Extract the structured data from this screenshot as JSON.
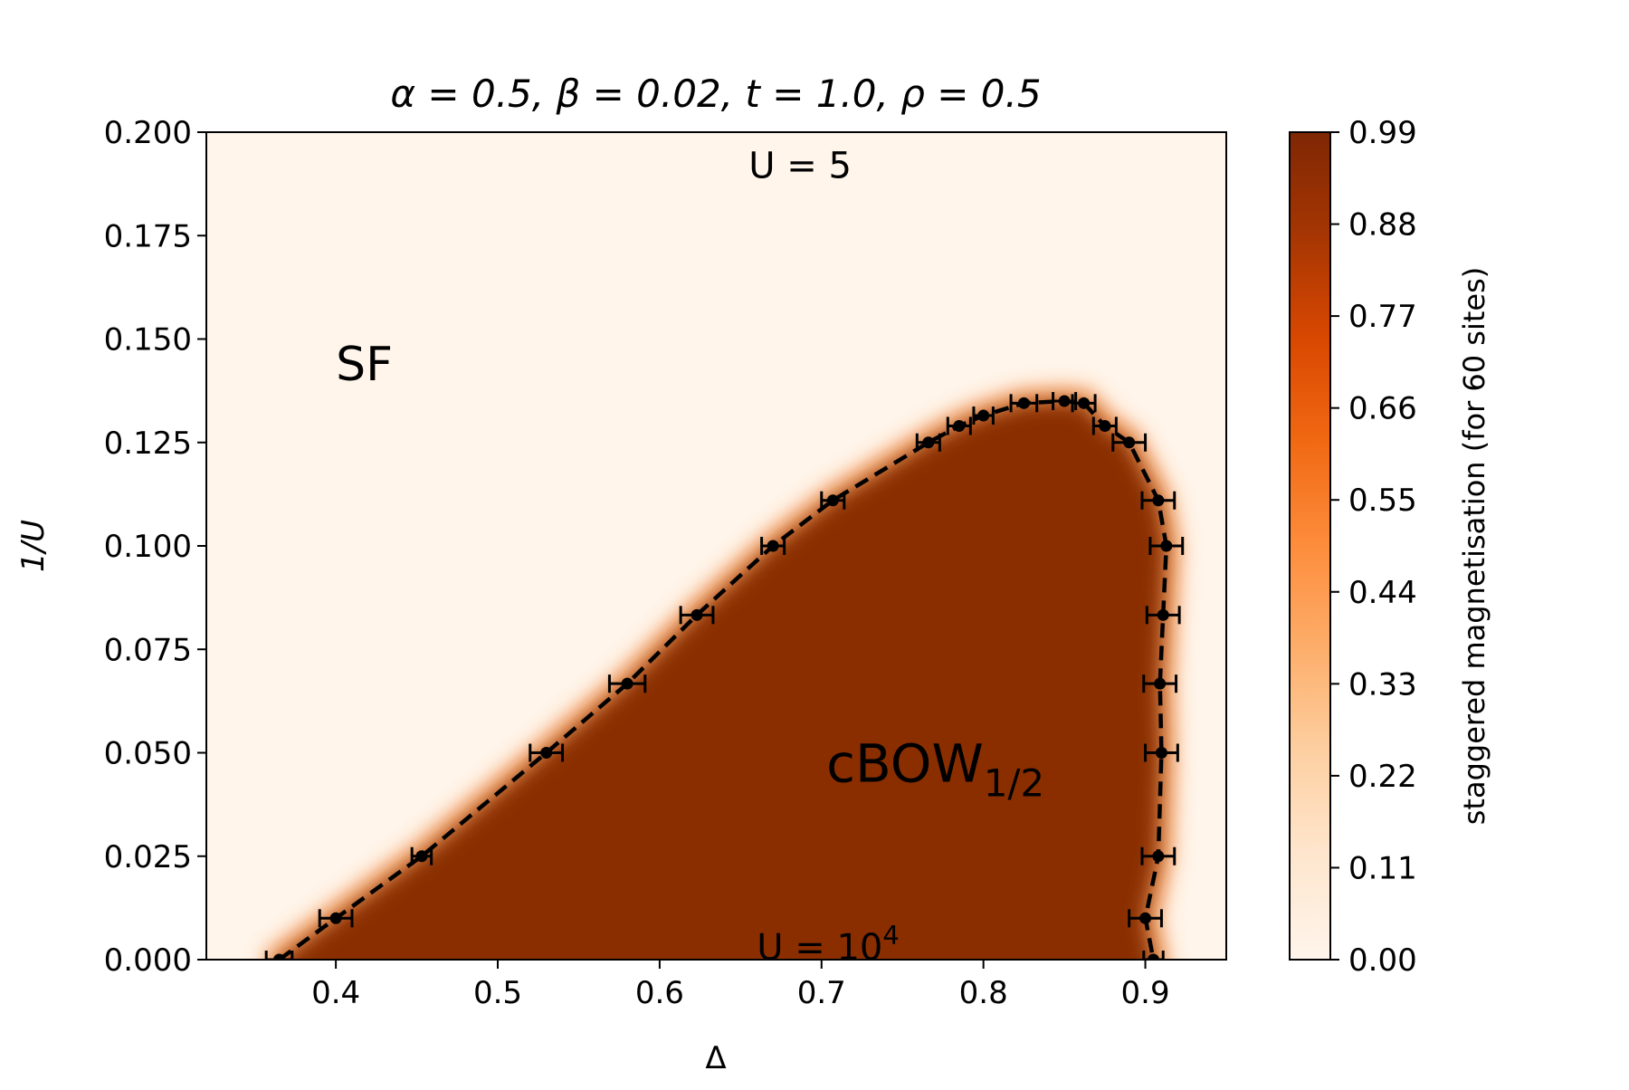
{
  "chart_data": {
    "type": "heatmap",
    "title": "α = 0.5, β = 0.02, t = 1.0, ρ = 0.5",
    "xlabel": "Δ",
    "ylabel": "1/U",
    "xlim": [
      0.32,
      0.95
    ],
    "ylim": [
      0.0,
      0.2
    ],
    "x_ticks": [
      0.4,
      0.5,
      0.6,
      0.7,
      0.8,
      0.9
    ],
    "x_tick_labels": [
      "0.4",
      "0.5",
      "0.6",
      "0.7",
      "0.8",
      "0.9"
    ],
    "y_ticks": [
      0.0,
      0.025,
      0.05,
      0.075,
      0.1,
      0.125,
      0.15,
      0.175,
      0.2
    ],
    "y_tick_labels": [
      "0.000",
      "0.025",
      "0.050",
      "0.075",
      "0.100",
      "0.125",
      "0.150",
      "0.175",
      "0.200"
    ],
    "grid": false,
    "colormap": "Oranges",
    "colormap_stops": [
      "#fff5eb",
      "#fee6ce",
      "#fdd0a2",
      "#fdae6b",
      "#fd8d3c",
      "#f16913",
      "#d94801",
      "#a63603",
      "#7f2704"
    ],
    "colorbar": {
      "label": "staggered magnetisation (for 60 sites)",
      "range": [
        0.0,
        0.99
      ],
      "ticks": [
        0.0,
        0.11,
        0.22,
        0.33,
        0.44,
        0.55,
        0.66,
        0.77,
        0.88,
        0.99
      ],
      "tick_labels": [
        "0.00",
        "0.11",
        "0.22",
        "0.33",
        "0.44",
        "0.55",
        "0.66",
        "0.77",
        "0.88",
        "0.99"
      ]
    },
    "ordered_phase_value": 0.9,
    "boundary": {
      "line_style": "dashed",
      "color": "#000000",
      "points": [
        {
          "x": 0.365,
          "y": 0.0,
          "xerr": 0.008
        },
        {
          "x": 0.4,
          "y": 0.01,
          "xerr": 0.01
        },
        {
          "x": 0.453,
          "y": 0.025,
          "xerr": 0.006
        },
        {
          "x": 0.53,
          "y": 0.05,
          "xerr": 0.01
        },
        {
          "x": 0.58,
          "y": 0.0667,
          "xerr": 0.011
        },
        {
          "x": 0.623,
          "y": 0.0833,
          "xerr": 0.01
        },
        {
          "x": 0.67,
          "y": 0.1,
          "xerr": 0.007
        },
        {
          "x": 0.707,
          "y": 0.111,
          "xerr": 0.007
        },
        {
          "x": 0.766,
          "y": 0.125,
          "xerr": 0.007
        },
        {
          "x": 0.785,
          "y": 0.129,
          "xerr": 0.007
        },
        {
          "x": 0.8,
          "y": 0.1315,
          "xerr": 0.006
        },
        {
          "x": 0.825,
          "y": 0.1345,
          "xerr": 0.008
        },
        {
          "x": 0.85,
          "y": 0.135,
          "xerr": 0.007
        },
        {
          "x": 0.862,
          "y": 0.1345,
          "xerr": 0.007
        },
        {
          "x": 0.875,
          "y": 0.129,
          "xerr": 0.007
        },
        {
          "x": 0.89,
          "y": 0.125,
          "xerr": 0.01
        },
        {
          "x": 0.908,
          "y": 0.111,
          "xerr": 0.01
        },
        {
          "x": 0.913,
          "y": 0.1,
          "xerr": 0.01
        },
        {
          "x": 0.911,
          "y": 0.0833,
          "xerr": 0.01
        },
        {
          "x": 0.909,
          "y": 0.0667,
          "xerr": 0.01
        },
        {
          "x": 0.91,
          "y": 0.05,
          "xerr": 0.01
        },
        {
          "x": 0.908,
          "y": 0.025,
          "xerr": 0.01
        },
        {
          "x": 0.9,
          "y": 0.01,
          "xerr": 0.01
        },
        {
          "x": 0.905,
          "y": 0.0,
          "xerr": 0.006
        }
      ]
    },
    "annotations": [
      {
        "text": "U = 5",
        "x": 0.655,
        "y": 0.189
      },
      {
        "text": "SF",
        "x": 0.4,
        "y": 0.14
      },
      {
        "text": "cBOW",
        "subscript": "1/2",
        "x": 0.703,
        "y": 0.043
      },
      {
        "text": "U = 10",
        "superscript": "4",
        "x": 0.66,
        "y": 0.0
      }
    ]
  }
}
